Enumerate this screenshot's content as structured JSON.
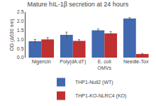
{
  "chart_data": {
    "type": "bar",
    "title": "Mature hIL-1β secretion at 24 hours",
    "y_label": "OD (Δ630 nm)",
    "categories": [
      "Nigericin",
      "Poly(dA:dT)",
      "E. coli\nOMVs",
      "Needle-Tox"
    ],
    "series": [
      {
        "name": "THP1-Null2 (WT)",
        "color": "#4169B0",
        "values": [
          0.9,
          1.25,
          1.5,
          2.15
        ],
        "errors": [
          0.1,
          0.15,
          0.07,
          0.05
        ]
      },
      {
        "name": "THP1-KO-NLRC4 (KO)",
        "color": "#C03030",
        "values": [
          1.0,
          0.92,
          1.33,
          0.2
        ],
        "errors": [
          0.1,
          0.07,
          0.1,
          0.03
        ]
      }
    ],
    "ylim": [
      0,
      2.5
    ],
    "yticks": [
      {
        "value": 0.0,
        "label": "0.0"
      },
      0.5,
      {
        "value": 1.0,
        "label": "1.0"
      },
      1.5,
      {
        "value": 2.0,
        "label": "2.0"
      },
      2.5
    ],
    "grid": false,
    "legend": "bottom"
  }
}
